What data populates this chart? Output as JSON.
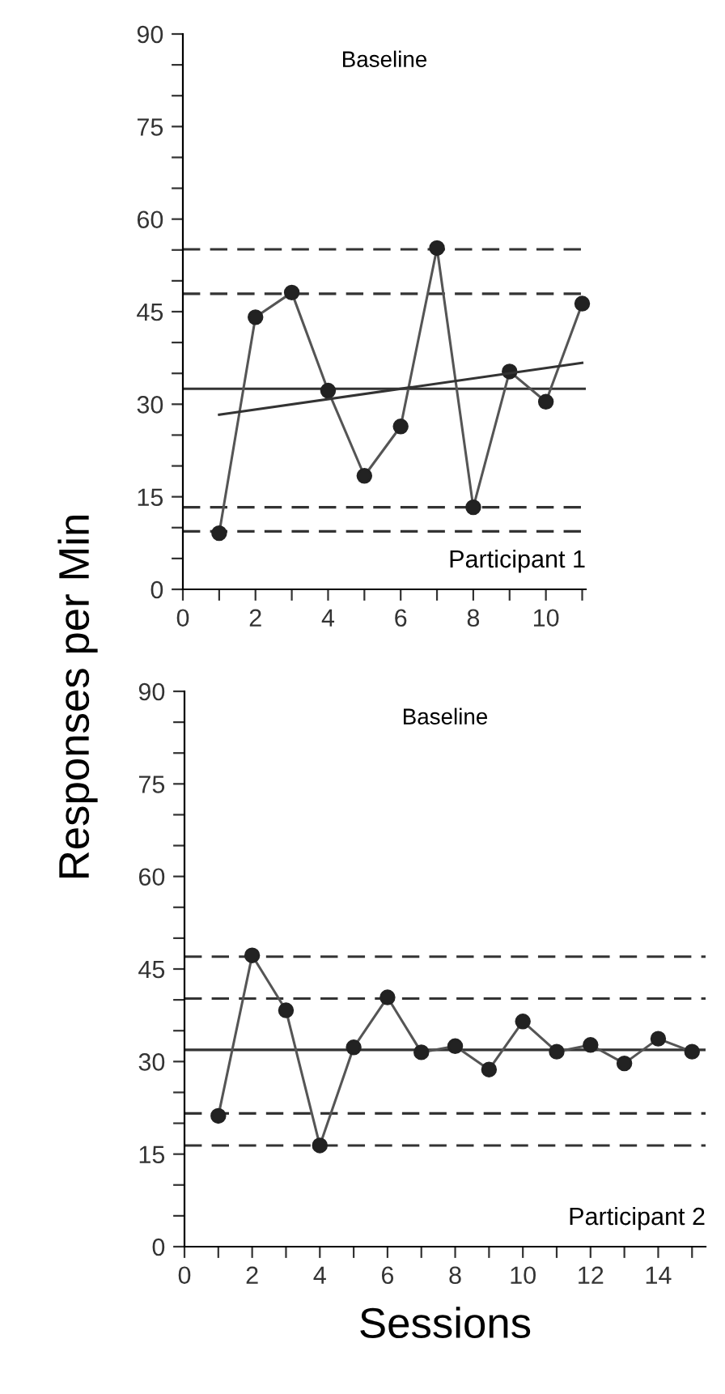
{
  "chart_data": [
    {
      "type": "line",
      "ylabel": "Responses per Min",
      "annotations": [
        "Baseline",
        "Participant 1"
      ],
      "x": [
        1,
        2,
        3,
        4,
        5,
        6,
        7,
        8,
        9,
        10,
        11
      ],
      "marker": "circle",
      "line_style": "solid",
      "grid": false,
      "legend": false,
      "series": [
        {
          "color": "#555555",
          "values": [
            9.1,
            44.1,
            48.1,
            32.2,
            18.4,
            26.4,
            55.3,
            13.3,
            35.3,
            30.4,
            46.3
          ]
        },
        {
          "color": "#333333",
          "x": [
            1,
            11
          ],
          "values": [
            28.3,
            36.7
          ],
          "marker": "none"
        }
      ],
      "ref_lines": [
        {
          "axis": "y",
          "value": 55.1,
          "line_style": "dashed",
          "color": "#333333"
        },
        {
          "axis": "y",
          "value": 47.9,
          "line_style": "dashed",
          "color": "#333333"
        },
        {
          "axis": "y",
          "value": 32.5,
          "line_style": "solid",
          "color": "#333333"
        },
        {
          "axis": "y",
          "value": 13.3,
          "line_style": "dashed",
          "color": "#333333"
        },
        {
          "axis": "y",
          "value": 9.4,
          "line_style": "dashed",
          "color": "#333333"
        }
      ],
      "xlim": [
        0,
        11.1
      ],
      "ylim": [
        0,
        90
      ],
      "xticks": [
        0,
        {
          "value": 1,
          "label": null
        },
        2,
        {
          "value": 3,
          "label": null
        },
        4,
        {
          "value": 5,
          "label": null
        },
        6,
        {
          "value": 7,
          "label": null
        },
        8,
        {
          "value": 9,
          "label": null
        },
        10,
        {
          "value": 11,
          "label": null
        }
      ],
      "yticks": [
        0,
        {
          "value": 5,
          "label": null
        },
        {
          "value": 10,
          "label": null
        },
        15,
        {
          "value": 20,
          "label": null
        },
        {
          "value": 25,
          "label": null
        },
        30,
        {
          "value": 35,
          "label": null
        },
        {
          "value": 40,
          "label": null
        },
        45,
        {
          "value": 50,
          "label": null
        },
        {
          "value": 55,
          "label": null
        },
        60,
        {
          "value": 65,
          "label": null
        },
        {
          "value": 70,
          "label": null
        },
        75,
        {
          "value": 80,
          "label": null
        },
        {
          "value": 85,
          "label": null
        },
        90
      ]
    },
    {
      "type": "line",
      "xlabel": "Sessions",
      "annotations": [
        "Baseline",
        "Participant 2"
      ],
      "x": [
        1,
        2,
        3,
        4,
        5,
        6,
        7,
        8,
        9,
        10,
        11,
        12,
        13,
        14,
        15
      ],
      "marker": "circle",
      "line_style": "solid",
      "grid": false,
      "legend": false,
      "series": [
        {
          "color": "#555555",
          "values": [
            21.2,
            47.2,
            38.3,
            16.4,
            32.3,
            40.4,
            31.5,
            32.5,
            28.7,
            36.5,
            31.6,
            32.7,
            29.7,
            33.7,
            31.6
          ]
        }
      ],
      "ref_lines": [
        {
          "axis": "y",
          "value": 47.0,
          "line_style": "dashed",
          "color": "#333333"
        },
        {
          "axis": "y",
          "value": 40.2,
          "line_style": "dashed",
          "color": "#333333"
        },
        {
          "axis": "y",
          "value": 31.9,
          "line_style": "solid",
          "color": "#333333"
        },
        {
          "axis": "y",
          "value": 21.6,
          "line_style": "dashed",
          "color": "#333333"
        },
        {
          "axis": "y",
          "value": 16.4,
          "line_style": "dashed",
          "color": "#333333"
        }
      ],
      "xlim": [
        0,
        15.4
      ],
      "ylim": [
        0,
        90
      ],
      "xticks": [
        0,
        {
          "value": 1,
          "label": null
        },
        2,
        {
          "value": 3,
          "label": null
        },
        4,
        {
          "value": 5,
          "label": null
        },
        6,
        {
          "value": 7,
          "label": null
        },
        8,
        {
          "value": 9,
          "label": null
        },
        10,
        {
          "value": 11,
          "label": null
        },
        12,
        {
          "value": 13,
          "label": null
        },
        14,
        {
          "value": 15,
          "label": null
        }
      ],
      "yticks": [
        0,
        {
          "value": 5,
          "label": null
        },
        {
          "value": 10,
          "label": null
        },
        15,
        {
          "value": 20,
          "label": null
        },
        {
          "value": 25,
          "label": null
        },
        30,
        {
          "value": 35,
          "label": null
        },
        {
          "value": 40,
          "label": null
        },
        45,
        {
          "value": 50,
          "label": null
        },
        {
          "value": 55,
          "label": null
        },
        60,
        {
          "value": 65,
          "label": null
        },
        {
          "value": 70,
          "label": null
        },
        75,
        {
          "value": 80,
          "label": null
        },
        {
          "value": 85,
          "label": null
        },
        90
      ]
    }
  ]
}
